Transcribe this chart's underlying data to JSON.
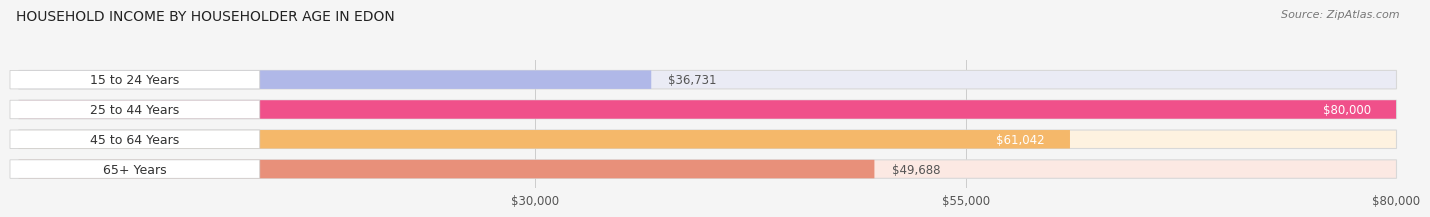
{
  "title": "HOUSEHOLD INCOME BY HOUSEHOLDER AGE IN EDON",
  "source": "Source: ZipAtlas.com",
  "categories": [
    "15 to 24 Years",
    "25 to 44 Years",
    "45 to 64 Years",
    "65+ Years"
  ],
  "values": [
    36731,
    80000,
    61042,
    49688
  ],
  "bar_colors": [
    "#b0b8e8",
    "#f0508a",
    "#f5b86a",
    "#e8907a"
  ],
  "bar_bg_colors": [
    "#eaebf5",
    "#fce8f0",
    "#fef2e0",
    "#fce9e3"
  ],
  "value_labels": [
    "$36,731",
    "$80,000",
    "$61,042",
    "$49,688"
  ],
  "value_inside": [
    false,
    true,
    true,
    false
  ],
  "x_ticks": [
    30000,
    55000,
    80000
  ],
  "x_tick_labels": [
    "$30,000",
    "$55,000",
    "$80,000"
  ],
  "xmin": 0,
  "xmax": 80000,
  "background_color": "#f5f5f5",
  "title_fontsize": 10,
  "source_fontsize": 8,
  "label_fontsize": 9,
  "tick_fontsize": 8.5,
  "value_label_fontsize": 8.5,
  "bar_height": 0.62,
  "bar_gap": 0.38
}
